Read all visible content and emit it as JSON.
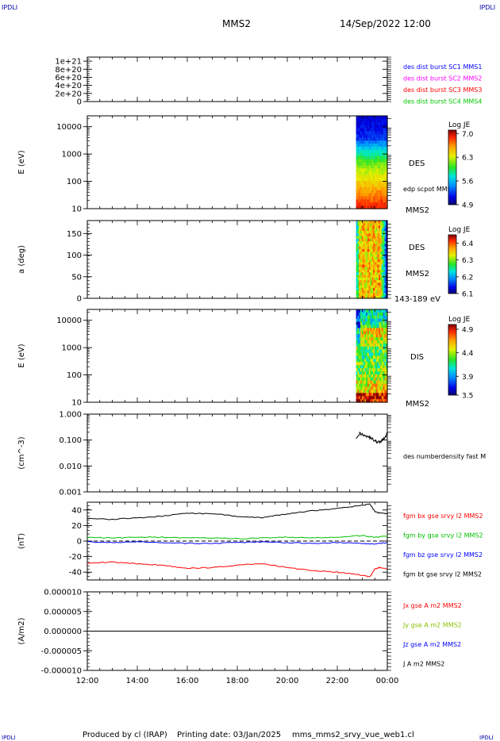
{
  "header": {
    "logo_left": "IPDLI",
    "logo_right": "IPDLI",
    "title": "MMS2",
    "date": "14/Sep/2022 12:00"
  },
  "footer": {
    "produced_by": "Produced by cl (IRAP)",
    "printing_date": "Printing date: 03/Jan/2025",
    "file": "mms_mms2_srvy_vue_web1.cl",
    "logo_left": "IPDLI",
    "logo_right": "IPDLI"
  },
  "colors": {
    "mms1": "#0000ff",
    "mms2": "#ff00ff",
    "mms3": "#ff0000",
    "mms4": "#00c800",
    "bx": "#ff0000",
    "by": "#00c000",
    "bz": "#0000ff",
    "bt": "#000000"
  },
  "chart_data": [
    {
      "type": "line",
      "ylabel": "",
      "ylim": [
        0,
        1.1e+21
      ],
      "yticks": [
        "1e+21",
        "8e+20",
        "6e+20",
        "4e+20",
        "2e+20",
        "0"
      ],
      "legend": [
        "des dist burst SC1 MMS1",
        "des dist burst SC2 MMS2",
        "des dist burst SC3 MMS3",
        "des dist burst SC4 MMS4"
      ],
      "series": [],
      "zero_line": "dashed"
    },
    {
      "type": "heatmap",
      "ylabel": "E (eV)",
      "yscale": "log",
      "ylim": [
        10,
        25000
      ],
      "yticks": [
        "10000",
        "1000",
        "100",
        "10"
      ],
      "data_start": "22:45",
      "data_end": "24:00",
      "colorbar": {
        "title": "Log JE",
        "ticks": [
          "7.0",
          "6.3",
          "5.6",
          "4.9"
        ],
        "range": [
          4.9,
          7.1
        ]
      },
      "labels": [
        "DES",
        "edp scpot MMS2",
        "MMS2"
      ]
    },
    {
      "type": "heatmap",
      "ylabel": "a (deg)",
      "ylim": [
        0,
        180
      ],
      "yticks": [
        "150",
        "100",
        "50",
        "0"
      ],
      "data_start": "22:45",
      "data_end": "24:00",
      "colorbar": {
        "title": "Log JE",
        "ticks": [
          "6.4",
          "6.3",
          "6.2",
          "6.1"
        ],
        "range": [
          6.1,
          6.45
        ]
      },
      "labels": [
        "DES",
        "MMS2",
        "143-189 eV"
      ]
    },
    {
      "type": "heatmap",
      "ylabel": "E (eV)",
      "yscale": "log",
      "ylim": [
        10,
        25000
      ],
      "yticks": [
        "10000",
        "1000",
        "100",
        "10"
      ],
      "data_start": "22:45",
      "data_end": "24:00",
      "colorbar": {
        "title": "Log JE",
        "ticks": [
          "4.9",
          "4.4",
          "3.9",
          "3.5"
        ],
        "range": [
          3.5,
          5.0
        ]
      },
      "labels": [
        "DIS",
        "MMS2"
      ]
    },
    {
      "type": "line",
      "ylabel": "(cm^-3)",
      "yscale": "log",
      "ylim": [
        0.001,
        1.0
      ],
      "yticks": [
        "1.000",
        "0.100",
        "0.010",
        "0.001"
      ],
      "legend": [
        "des numberdensity fast M"
      ],
      "series": [
        {
          "name": "des numberdensity fast M",
          "color": "#000000",
          "x": [
            22.75,
            22.9,
            23.05,
            23.2,
            23.35,
            23.5,
            23.6,
            23.7,
            23.8,
            23.9,
            24.0
          ],
          "y": [
            0.13,
            0.18,
            0.16,
            0.14,
            0.12,
            0.095,
            0.08,
            0.085,
            0.1,
            0.12,
            0.19
          ]
        }
      ]
    },
    {
      "type": "line",
      "ylabel": "(nT)",
      "ylim": [
        -50,
        50
      ],
      "yticks": [
        "40",
        "20",
        "0",
        "-20",
        "-40"
      ],
      "legend": [
        "fgm bx gse srvy l2 MMS2",
        "fgm by gse srvy l2 MMS2",
        "fgm bz gse srvy l2 MMS2",
        "fgm bt gse srvy l2 MMS2"
      ],
      "zero_line": "dashed",
      "series": [
        {
          "name": "fgm bx gse srvy l2 MMS2",
          "color": "#ff0000",
          "x": [
            12,
            13,
            14,
            15,
            16,
            17,
            18,
            19,
            20,
            21,
            22,
            22.5,
            23,
            23.3,
            23.5,
            23.7,
            24
          ],
          "y": [
            -28,
            -27,
            -29,
            -31,
            -35,
            -34,
            -31,
            -29,
            -34,
            -38,
            -40,
            -42,
            -44,
            -46,
            -36,
            -34,
            -36
          ]
        },
        {
          "name": "fgm by gse srvy l2 MMS2",
          "color": "#00c000",
          "x": [
            12,
            13,
            14,
            15,
            16,
            17,
            18,
            19,
            20,
            21,
            22,
            23,
            23.5,
            24
          ],
          "y": [
            5,
            4,
            5,
            5,
            4,
            4,
            3,
            4,
            5,
            4,
            5,
            7,
            5,
            6
          ]
        },
        {
          "name": "fgm bz gse srvy l2 MMS2",
          "color": "#0000ff",
          "x": [
            12,
            13,
            14,
            15,
            16,
            17,
            18,
            19,
            20,
            21,
            22,
            23,
            23.5,
            24
          ],
          "y": [
            -1,
            -2,
            -1,
            -2,
            -3,
            -3,
            -2,
            -1,
            -2,
            -3,
            -2,
            -3,
            -4,
            -2
          ]
        },
        {
          "name": "fgm bt gse srvy l2 MMS2",
          "color": "#000000",
          "x": [
            12,
            13,
            14,
            15,
            16,
            17,
            18,
            19,
            20,
            21,
            22,
            22.5,
            23,
            23.3,
            23.5,
            23.7,
            24
          ],
          "y": [
            29,
            28,
            30,
            32,
            36,
            35,
            32,
            30,
            35,
            39,
            42,
            44,
            46,
            48,
            38,
            36,
            35
          ]
        }
      ]
    },
    {
      "type": "line",
      "ylabel": "(A/m2)",
      "ylim": [
        -1e-05,
        1e-05
      ],
      "yticks": [
        "0.000010",
        "0.000005",
        "0.000000",
        "-0.000005",
        "-0.000010"
      ],
      "legend": [
        "Jx gse A m2 MMS2",
        "Jy gse A m2 MMS2",
        "Jz gse A m2 MMS2",
        "J A m2 MMS2"
      ],
      "series": [
        {
          "name": "J A m2 MMS2",
          "color": "#000000",
          "x": [
            12,
            24
          ],
          "y": [
            0,
            0
          ]
        }
      ]
    }
  ],
  "xaxis": {
    "ticks": [
      "12:00",
      "14:00",
      "16:00",
      "18:00",
      "20:00",
      "22:00",
      "00:00"
    ],
    "range": [
      12,
      24
    ]
  }
}
